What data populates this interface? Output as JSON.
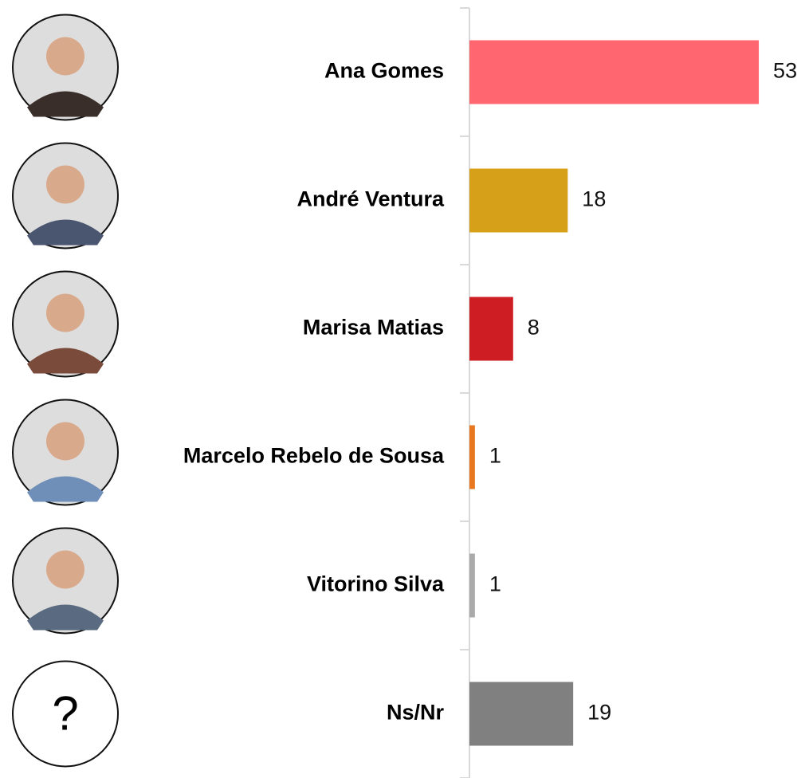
{
  "chart_data": {
    "type": "hbar",
    "categories": [
      "Ana Gomes",
      "André Ventura",
      "Marisa Matias",
      "Marcelo Rebelo de Sousa",
      "Vitorino Silva",
      "Ns/Nr"
    ],
    "values": [
      53,
      18,
      8,
      1,
      1,
      19
    ],
    "colors": [
      "#ff6670",
      "#d6a119",
      "#cf1d24",
      "#e8771f",
      "#aaaaaa",
      "#808080"
    ],
    "xlim": [
      0,
      60
    ],
    "unknown_avatar_label": "?"
  }
}
